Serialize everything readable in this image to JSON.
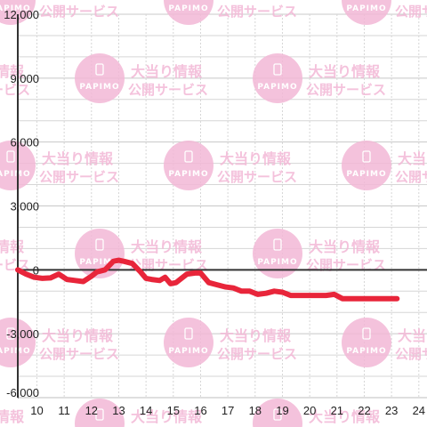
{
  "watermark": {
    "logo_text": "PAPIMO",
    "line1": "大当り情報",
    "line2": "公開サービス"
  },
  "colors": {
    "series": "#e8253a",
    "watermark": "#f3b8d6",
    "grid_major": "#c8c8c8",
    "grid_minor": "#d6d6d6",
    "axis": "#333333"
  },
  "chart_data": {
    "type": "line",
    "title": "",
    "xlabel": "",
    "ylabel": "",
    "xlim": [
      9.3,
      24.3
    ],
    "ylim": [
      -6000,
      12000
    ],
    "x_ticks": [
      "10",
      "11",
      "12",
      "13",
      "14",
      "15",
      "16",
      "17",
      "18",
      "19",
      "20",
      "21",
      "22",
      "23",
      "24"
    ],
    "x_tick_values": [
      10,
      11,
      12,
      13,
      14,
      15,
      16,
      17,
      18,
      19,
      20,
      21,
      22,
      23,
      24
    ],
    "y_ticks": [
      "12,000",
      "9,000",
      "6,000",
      "3,000",
      "0",
      "-3,000",
      "-6,000"
    ],
    "y_tick_values": [
      12000,
      9000,
      6000,
      3000,
      0,
      -3000,
      -6000
    ],
    "grid": true,
    "series": [
      {
        "x": [
          9.3,
          9.6,
          9.9,
          10.2,
          10.5,
          10.8,
          11.1,
          11.4,
          11.7,
          12.0,
          12.2,
          12.5,
          12.8,
          13.0,
          13.2,
          13.5,
          13.8,
          14.0,
          14.2,
          14.5,
          14.7,
          14.9,
          15.1,
          15.3,
          15.5,
          15.8,
          16.0,
          16.3,
          16.6,
          16.9,
          17.2,
          17.5,
          17.8,
          18.1,
          18.4,
          18.7,
          19.0,
          19.3,
          19.7,
          20.0,
          20.3,
          20.6,
          20.9,
          21.2,
          21.6,
          22.0,
          22.4,
          22.8,
          23.2
        ],
        "y": [
          0,
          -200,
          -350,
          -400,
          -380,
          -200,
          -450,
          -500,
          -550,
          -300,
          -100,
          0,
          400,
          450,
          400,
          300,
          -100,
          -400,
          -450,
          -500,
          -350,
          -650,
          -600,
          -400,
          -200,
          -150,
          -150,
          -600,
          -700,
          -800,
          -850,
          -1000,
          -1000,
          -1150,
          -1100,
          -1000,
          -1050,
          -1200,
          -1200,
          -1200,
          -1200,
          -1200,
          -1150,
          -1350,
          -1350,
          -1350,
          -1350,
          -1350,
          -1350
        ]
      }
    ]
  }
}
